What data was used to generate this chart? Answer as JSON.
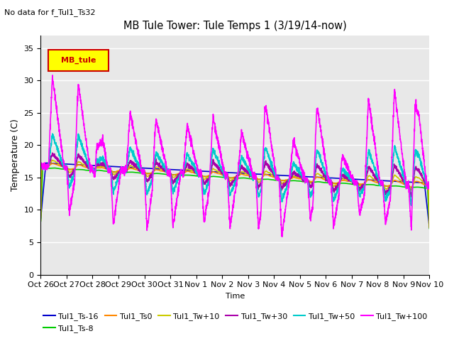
{
  "title": "MB Tule Tower: Tule Temps 1 (3/19/14-now)",
  "no_data_text": "No data for f_Tul1_Ts32",
  "ylabel": "Temperature (C)",
  "xlabel": "Time",
  "ylim": [
    0,
    37
  ],
  "yticks": [
    0,
    5,
    10,
    15,
    20,
    25,
    30,
    35
  ],
  "xlim": [
    0,
    15
  ],
  "xtick_labels": [
    "Oct 26",
    "Oct 27",
    "Oct 28",
    "Oct 29",
    "Oct 30",
    "Oct 31",
    "Nov 1",
    "Nov 2",
    "Nov 3",
    "Nov 4",
    "Nov 5",
    "Nov 6",
    "Nov 7",
    "Nov 8",
    "Nov 9",
    "Nov 10"
  ],
  "legend_box_label": "MB_tule",
  "legend_box_color": "#ffff00",
  "legend_box_border": "#cc0000",
  "series": [
    {
      "label": "Tul1_Ts-16",
      "color": "#0000cc"
    },
    {
      "label": "Tul1_Ts-8",
      "color": "#00cc00"
    },
    {
      "label": "Tul1_Ts0",
      "color": "#ff8800"
    },
    {
      "label": "Tul1_Tw+10",
      "color": "#cccc00"
    },
    {
      "label": "Tul1_Tw+30",
      "color": "#aa00aa"
    },
    {
      "label": "Tul1_Tw+50",
      "color": "#00cccc"
    },
    {
      "label": "Tul1_Tw+100",
      "color": "#ff00ff"
    }
  ],
  "bg_color": "#e8e8e8",
  "plot_bg_color": "#ffffff",
  "spike_peaks": [
    0.3,
    1.3,
    2.0,
    3.3,
    4.3,
    5.5,
    6.5,
    7.6,
    8.5,
    9.6,
    10.5,
    11.5,
    12.5,
    13.5,
    14.3
  ],
  "spike_heights_100": [
    14,
    13,
    10,
    9,
    8,
    7.5,
    9,
    7,
    12,
    6,
    12,
    4,
    13,
    14.5,
    16
  ],
  "spike_dips_100": [
    7,
    8,
    8.5,
    9,
    8.5,
    7.5,
    8,
    8,
    9,
    6,
    7,
    5,
    6,
    7,
    8
  ],
  "spike_heights_50": [
    5,
    5,
    4,
    3.5,
    3,
    3,
    4,
    3,
    5,
    2.5,
    5,
    2,
    5,
    6,
    7
  ],
  "spike_dips_50": [
    3,
    3.5,
    3.5,
    3.5,
    3,
    3,
    3,
    3,
    3.5,
    2.5,
    3,
    2,
    2.5,
    3,
    3.5
  ],
  "spike_heights_30": [
    2,
    2,
    2,
    1.5,
    1.5,
    1.5,
    2,
    1.5,
    2.5,
    1,
    2.5,
    1,
    2.5,
    3,
    3.5
  ],
  "spike_dips_30": [
    1.5,
    1.5,
    1.5,
    1.5,
    1.5,
    1.5,
    1.5,
    1.5,
    1.5,
    1,
    1.5,
    1,
    1.5,
    1.5,
    2
  ],
  "spike_heights_10": [
    1,
    1,
    1,
    0.8,
    0.8,
    0.8,
    1,
    0.8,
    1.2,
    0.5,
    1.2,
    0.5,
    1.2,
    1.5,
    1.8
  ],
  "spike_dips_10": [
    0.8,
    0.8,
    0.8,
    0.8,
    0.8,
    0.8,
    0.8,
    0.8,
    0.8,
    0.5,
    0.8,
    0.5,
    0.8,
    0.8,
    1
  ],
  "spike_heights_0": [
    0.5,
    0.5,
    0.5,
    0.4,
    0.4,
    0.4,
    0.5,
    0.4,
    0.6,
    0.25,
    0.6,
    0.25,
    0.6,
    0.7,
    0.9
  ],
  "spike_dips_0": [
    0.4,
    0.4,
    0.4,
    0.4,
    0.4,
    0.4,
    0.4,
    0.4,
    0.4,
    0.25,
    0.4,
    0.25,
    0.4,
    0.4,
    0.5
  ]
}
